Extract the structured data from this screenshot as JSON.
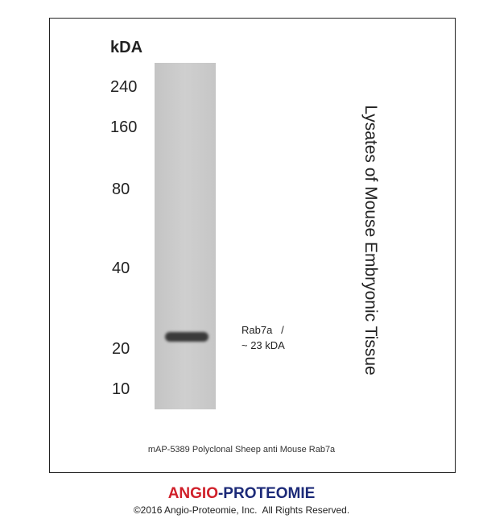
{
  "blot": {
    "unit_label": "kDA",
    "markers": [
      "240",
      "160",
      "80",
      "40",
      "20",
      "10"
    ],
    "band_label_line1": "Rab7a   /",
    "band_label_line2": "~ 23 kDA",
    "side_label": "Lysates of Mouse Embryonic Tissue",
    "caption": "mAP-5389 Polyclonal Sheep anti Mouse Rab7a"
  },
  "footer": {
    "brand_part1": "ANGIO",
    "brand_sep": "-",
    "brand_part2": "PROTEOMIE",
    "copyright": "©2016 Angio-Proteomie, Inc.  All Rights Reserved.",
    "colors": {
      "brand_red": "#d0202a",
      "brand_blue": "#1c2a78"
    }
  }
}
